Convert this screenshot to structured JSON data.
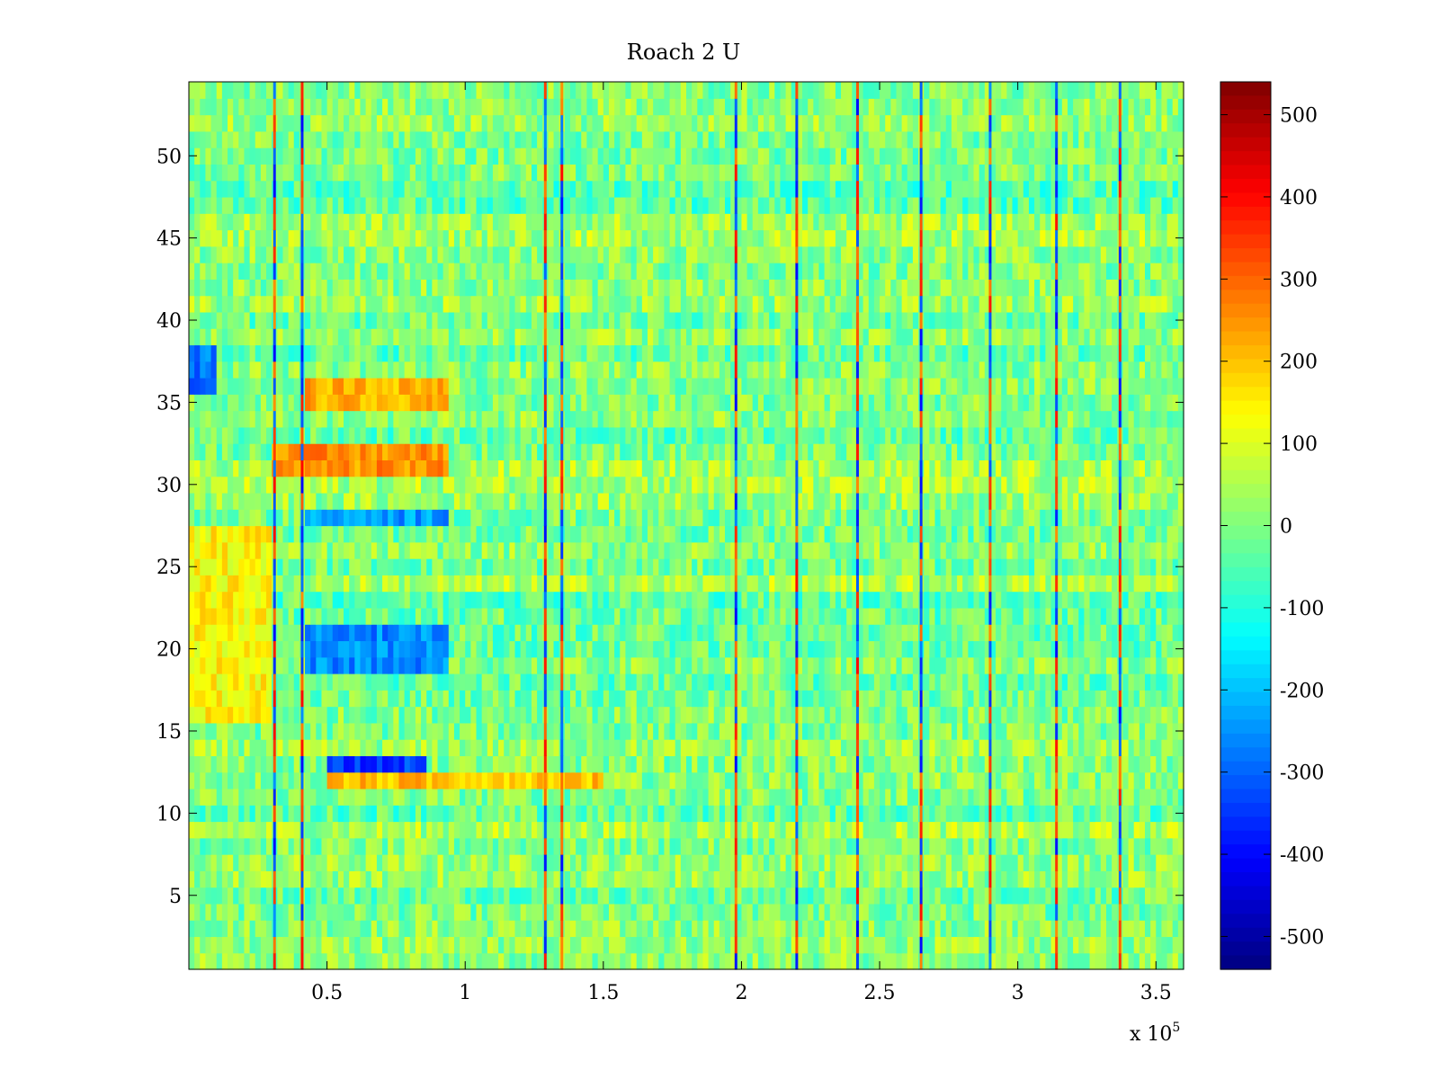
{
  "chart_data": {
    "type": "heatmap",
    "title": "Roach 2 U",
    "xlabel": "",
    "ylabel": "",
    "x_exponent_label": "x 10",
    "x_exponent_power": "5",
    "xlim": [
      0,
      3.6
    ],
    "ylim": [
      0.5,
      54.5
    ],
    "x_ticks": [
      {
        "value": 0.5,
        "label": "0.5"
      },
      {
        "value": 1,
        "label": "1"
      },
      {
        "value": 1.5,
        "label": "1.5"
      },
      {
        "value": 2,
        "label": "2"
      },
      {
        "value": 2.5,
        "label": "2.5"
      },
      {
        "value": 3,
        "label": "3"
      },
      {
        "value": 3.5,
        "label": "3.5"
      }
    ],
    "y_ticks": [
      {
        "value": 5,
        "label": "5"
      },
      {
        "value": 10,
        "label": "10"
      },
      {
        "value": 15,
        "label": "15"
      },
      {
        "value": 20,
        "label": "20"
      },
      {
        "value": 25,
        "label": "25"
      },
      {
        "value": 30,
        "label": "30"
      },
      {
        "value": 35,
        "label": "35"
      },
      {
        "value": 40,
        "label": "40"
      },
      {
        "value": 45,
        "label": "45"
      },
      {
        "value": 50,
        "label": "50"
      }
    ],
    "rows": 54,
    "colormap": "jet",
    "clim": [
      -540,
      540
    ],
    "colorbar_ticks": [
      {
        "value": 500,
        "label": "500"
      },
      {
        "value": 400,
        "label": "400"
      },
      {
        "value": 300,
        "label": "300"
      },
      {
        "value": 200,
        "label": "200"
      },
      {
        "value": 100,
        "label": "100"
      },
      {
        "value": 0,
        "label": "0"
      },
      {
        "value": -100,
        "label": "-100"
      },
      {
        "value": -200,
        "label": "-200"
      },
      {
        "value": -300,
        "label": "-300"
      },
      {
        "value": -400,
        "label": "-400"
      },
      {
        "value": -500,
        "label": "-500"
      }
    ],
    "spike_columns_x1e5": [
      0.31,
      0.41,
      1.29,
      1.35,
      1.98,
      2.2,
      2.42,
      2.65,
      2.9,
      3.14,
      3.37
    ],
    "features": [
      {
        "rows": [
          31,
          32
        ],
        "x": [
          0.3,
          0.95
        ],
        "value": 250
      },
      {
        "rows": [
          35,
          36
        ],
        "x": [
          0.42,
          0.95
        ],
        "value": 220
      },
      {
        "rows": [
          12,
          12
        ],
        "x": [
          0.5,
          1.5
        ],
        "value": 200
      },
      {
        "rows": [
          13,
          13
        ],
        "x": [
          0.5,
          0.85
        ],
        "value": -340
      },
      {
        "rows": [
          19,
          21
        ],
        "x": [
          0.42,
          0.95
        ],
        "value": -260
      },
      {
        "rows": [
          28,
          28
        ],
        "x": [
          0.42,
          0.95
        ],
        "value": -240
      },
      {
        "rows": [
          16,
          27
        ],
        "x": [
          0,
          0.3
        ],
        "value": 140
      },
      {
        "rows": [
          36,
          38
        ],
        "x": [
          0,
          0.1
        ],
        "value": -280
      }
    ]
  }
}
